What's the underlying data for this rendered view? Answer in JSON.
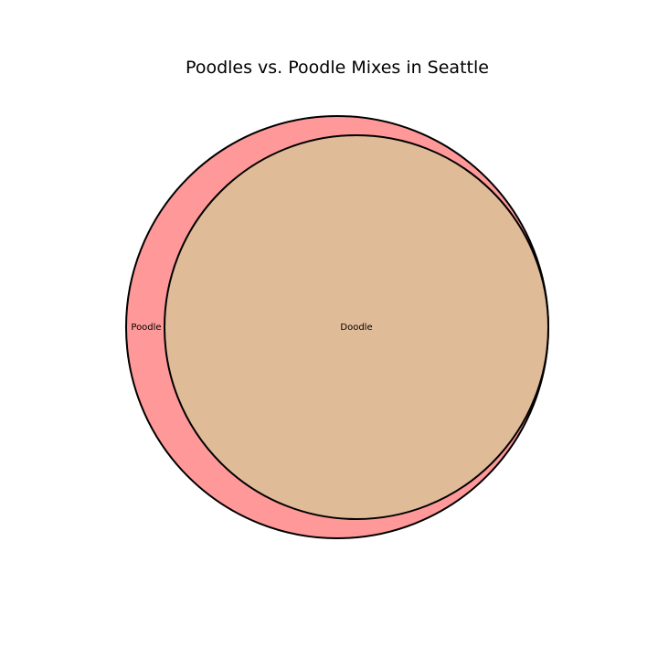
{
  "title": "Poodles vs. Poodle Mixes in Seattle",
  "sets": [
    {
      "name": "Poodle",
      "color": "#ff9999",
      "label": "Poodle"
    },
    {
      "name": "Doodle",
      "color": "#e0bb98",
      "label": "Doodle"
    }
  ],
  "relationship": "Doodle set lies almost entirely inside Poodle set",
  "outline_color": "#000000",
  "background": "#ffffff"
}
